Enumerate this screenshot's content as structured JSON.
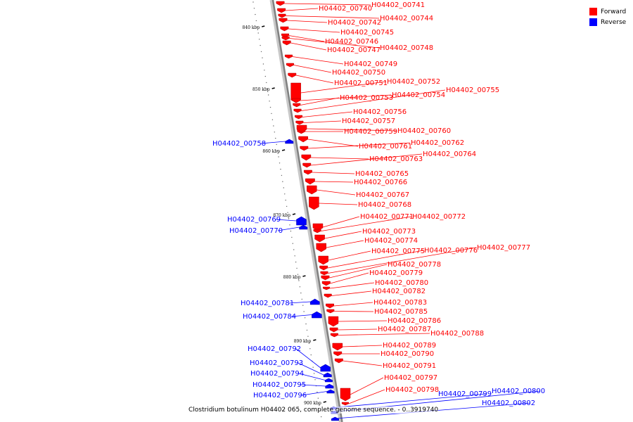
{
  "caption": "Clostridium botulinum H04402 065, complete genome sequence. - 0..3919740",
  "legend": [
    {
      "label": "Forward",
      "color": "#ff0000"
    },
    {
      "label": "Reverse",
      "color": "#0000ff"
    }
  ],
  "colors": {
    "forward": "#ff0000",
    "reverse": "#0000ff",
    "backbone": "#808080"
  },
  "scale": {
    "unit": "kbp",
    "labeled_ticks": [
      "840 kbp",
      "850 kbp",
      "860 kbp",
      "870 kbp",
      "880 kbp",
      "890 kbp",
      "900 kbp"
    ]
  },
  "genes": [
    {
      "id": "H04402_00740",
      "strand": "forward"
    },
    {
      "id": "H04402_00741",
      "strand": "forward"
    },
    {
      "id": "H04402_00742",
      "strand": "forward"
    },
    {
      "id": "H04402_00744",
      "strand": "forward"
    },
    {
      "id": "H04402_00745",
      "strand": "forward"
    },
    {
      "id": "H04402_00746",
      "strand": "forward"
    },
    {
      "id": "H04402_00747",
      "strand": "forward"
    },
    {
      "id": "H04402_00748",
      "strand": "forward"
    },
    {
      "id": "H04402_00749",
      "strand": "forward"
    },
    {
      "id": "H04402_00750",
      "strand": "forward"
    },
    {
      "id": "H04402_00751",
      "strand": "forward"
    },
    {
      "id": "H04402_00752",
      "strand": "forward"
    },
    {
      "id": "H04402_00753",
      "strand": "forward"
    },
    {
      "id": "H04402_00754",
      "strand": "forward"
    },
    {
      "id": "H04402_00755",
      "strand": "forward"
    },
    {
      "id": "H04402_00756",
      "strand": "forward"
    },
    {
      "id": "H04402_00757",
      "strand": "forward"
    },
    {
      "id": "H04402_00758",
      "strand": "reverse"
    },
    {
      "id": "H04402_00759",
      "strand": "forward"
    },
    {
      "id": "H04402_00760",
      "strand": "forward"
    },
    {
      "id": "H04402_00761",
      "strand": "forward"
    },
    {
      "id": "H04402_00762",
      "strand": "forward"
    },
    {
      "id": "H04402_00763",
      "strand": "forward"
    },
    {
      "id": "H04402_00764",
      "strand": "forward"
    },
    {
      "id": "H04402_00765",
      "strand": "forward"
    },
    {
      "id": "H04402_00766",
      "strand": "forward"
    },
    {
      "id": "H04402_00767",
      "strand": "forward"
    },
    {
      "id": "H04402_00768",
      "strand": "forward"
    },
    {
      "id": "H04402_00769",
      "strand": "reverse"
    },
    {
      "id": "H04402_00770",
      "strand": "reverse"
    },
    {
      "id": "H04402_00771",
      "strand": "forward"
    },
    {
      "id": "H04402_00772",
      "strand": "forward"
    },
    {
      "id": "H04402_00773",
      "strand": "forward"
    },
    {
      "id": "H04402_00774",
      "strand": "forward"
    },
    {
      "id": "H04402_00775",
      "strand": "forward"
    },
    {
      "id": "H04402_00776",
      "strand": "forward"
    },
    {
      "id": "H04402_00777",
      "strand": "forward"
    },
    {
      "id": "H04402_00778",
      "strand": "forward"
    },
    {
      "id": "H04402_00779",
      "strand": "forward"
    },
    {
      "id": "H04402_00780",
      "strand": "forward"
    },
    {
      "id": "H04402_00781",
      "strand": "reverse"
    },
    {
      "id": "H04402_00782",
      "strand": "forward"
    },
    {
      "id": "H04402_00783",
      "strand": "forward"
    },
    {
      "id": "H04402_00784",
      "strand": "reverse"
    },
    {
      "id": "H04402_00785",
      "strand": "forward"
    },
    {
      "id": "H04402_00786",
      "strand": "forward"
    },
    {
      "id": "H04402_00787",
      "strand": "forward"
    },
    {
      "id": "H04402_00788",
      "strand": "forward"
    },
    {
      "id": "H04402_00789",
      "strand": "forward"
    },
    {
      "id": "H04402_00790",
      "strand": "forward"
    },
    {
      "id": "H04402_00791",
      "strand": "forward"
    },
    {
      "id": "H04402_00792",
      "strand": "reverse"
    },
    {
      "id": "H04402_00793",
      "strand": "reverse"
    },
    {
      "id": "H04402_00794",
      "strand": "reverse"
    },
    {
      "id": "H04402_00795",
      "strand": "reverse"
    },
    {
      "id": "H04402_00796",
      "strand": "reverse"
    },
    {
      "id": "H04402_00797",
      "strand": "forward"
    },
    {
      "id": "H04402_00798",
      "strand": "forward"
    },
    {
      "id": "H04402_00799",
      "strand": "reverse"
    },
    {
      "id": "H04402_00800",
      "strand": "reverse"
    },
    {
      "id": "H04402_00802",
      "strand": "reverse"
    }
  ]
}
